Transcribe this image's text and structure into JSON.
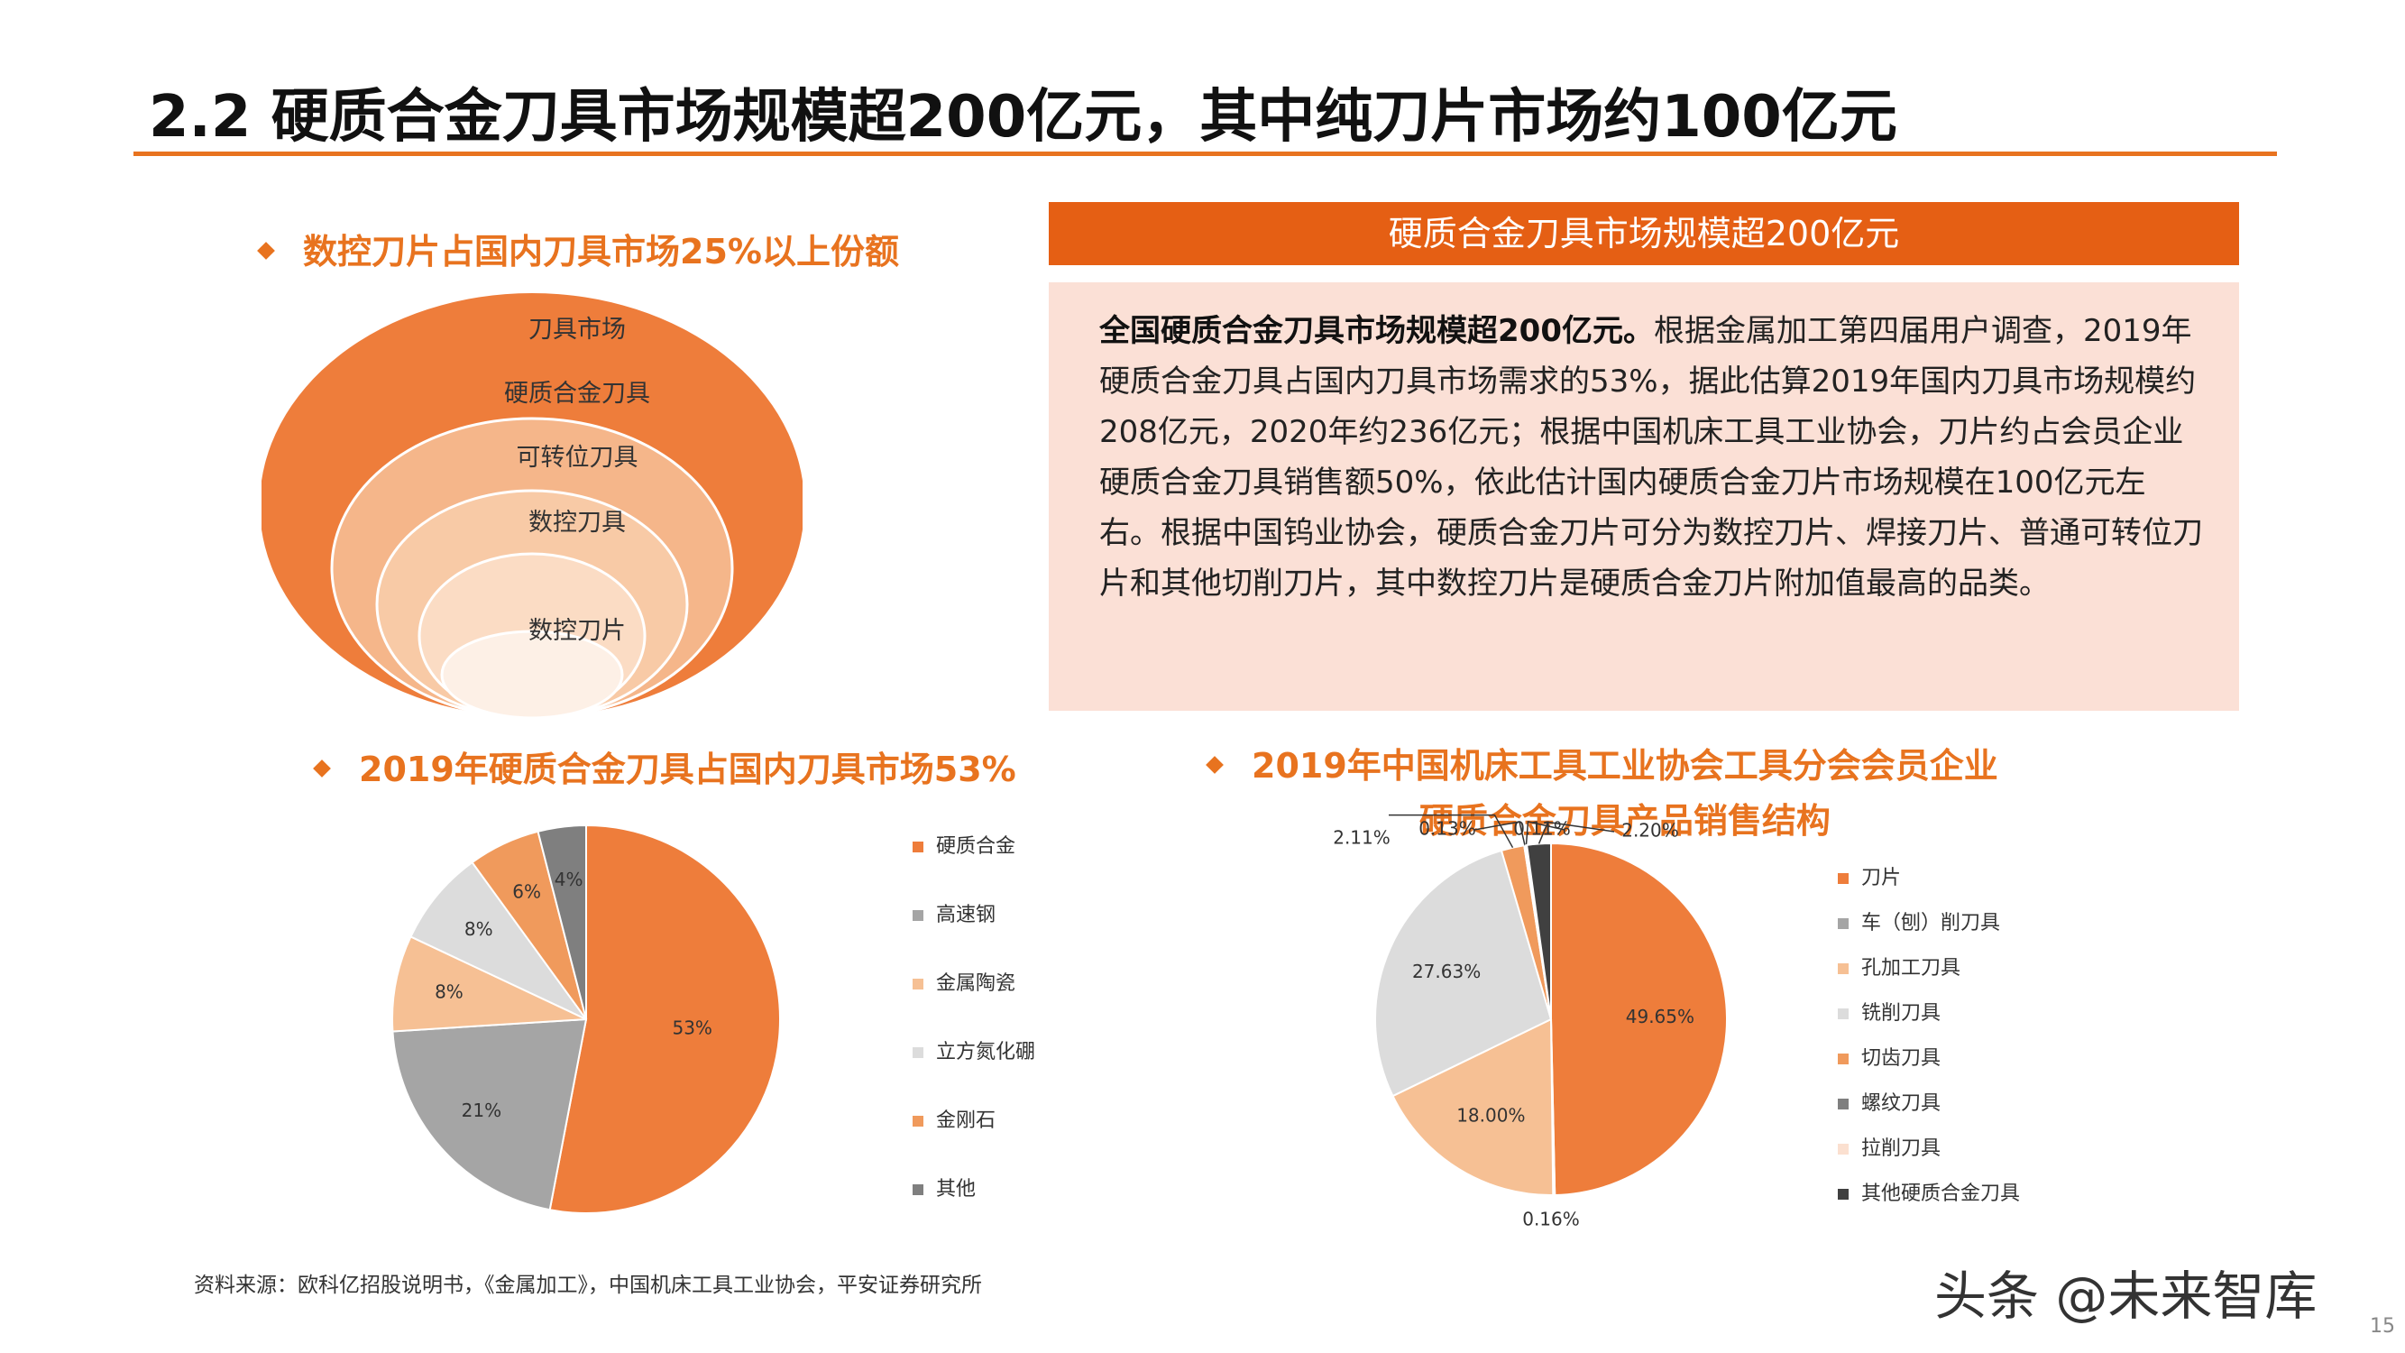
{
  "slide": {
    "title": "2.2 硬质合金刀具市场规模超200亿元，其中纯刀片市场约100亿元",
    "page_number": "15"
  },
  "left_top": {
    "heading": "数控刀片占国内刀具市场25%以上份额",
    "nested_labels": [
      "刀具市场",
      "硬质合金刀具",
      "可转位刀具",
      "数控刀具",
      "数控刀片"
    ]
  },
  "right_top": {
    "banner": "硬质合金刀具市场规模超200亿元",
    "text_bold": "全国硬质合金刀具市场规模超200亿元。",
    "text_body": "根据金属加工第四届用户调查，2019年硬质合金刀具占国内刀具市场需求的53%，据此估算2019年国内刀具市场规模约208亿元，2020年约236亿元；根据中国机床工具工业协会，刀片约占会员企业硬质合金刀具销售额50%，依此估计国内硬质合金刀片市场规模在100亿元左右。根据中国钨业协会，硬质合金刀片可分为数控刀片、焊接刀片、普通可转位刀片和其他切削刀片，其中数控刀片是硬质合金刀片附加值最高的品类。"
  },
  "colors": {
    "accent": "#e8731f",
    "banner": "#e55f14",
    "text_bg": "#fbe0d6"
  },
  "chart_data": [
    {
      "type": "pie",
      "title": "2019年硬质合金刀具占国内刀具市场53%",
      "categories": [
        "硬质合金",
        "高速钢",
        "金属陶瓷",
        "立方氮化硼",
        "金刚石",
        "其他"
      ],
      "values": [
        53,
        21,
        8,
        8,
        6,
        4
      ],
      "labels": [
        "53%",
        "21%",
        "8%",
        "8%",
        "6%",
        "4%"
      ],
      "colors": [
        "#ee7d3b",
        "#a5a5a5",
        "#f6c094",
        "#dcdcdc",
        "#f09a5c",
        "#7f7f7f"
      ],
      "legend_position": "right"
    },
    {
      "type": "pie",
      "title_lines": [
        "2019年中国机床工具工业协会工具分会会员企业",
        "硬质合金刀具产品销售结构"
      ],
      "categories": [
        "刀片",
        "车（刨）削刀具",
        "孔加工刀具",
        "铣削刀具",
        "切齿刀具",
        "螺纹刀具",
        "拉削刀具",
        "其他硬质合金刀具"
      ],
      "values": [
        49.65,
        0.16,
        18.0,
        27.63,
        2.11,
        0.13,
        0.11,
        2.2
      ],
      "labels": [
        "49.65%",
        "0.16%",
        "18.00%",
        "27.63%",
        "2.11%",
        "0.13%",
        "0.11%",
        "2.20%"
      ],
      "colors": [
        "#ee7d3b",
        "#a5a5a5",
        "#f6c094",
        "#dcdcdc",
        "#f09a5c",
        "#7f7f7f",
        "#fbe0d0",
        "#404040"
      ],
      "legend_position": "right"
    }
  ],
  "source": "资料来源：欧科亿招股说明书，《金属加工》，中国机床工具工业协会，平安证券研究所",
  "watermark": "头条 @未来智库"
}
